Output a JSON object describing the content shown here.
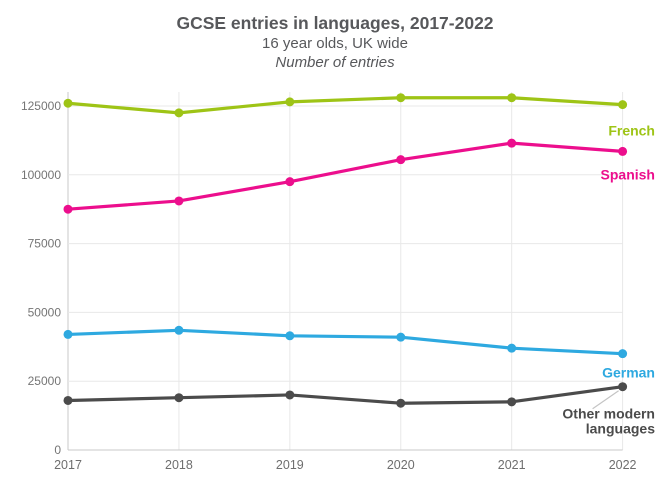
{
  "header": {
    "title": "GCSE entries in languages, 2017-2022",
    "subtitle": "16 year olds, UK wide",
    "note": "Number of entries"
  },
  "chart_data": {
    "type": "line",
    "title": "GCSE entries in languages, 2017-2022",
    "subtitle": "16 year olds, UK wide",
    "ylabel": "Number of entries",
    "xlabel": "",
    "categories": [
      "2017",
      "2018",
      "2019",
      "2020",
      "2021",
      "2022"
    ],
    "series": [
      {
        "name": "French",
        "color": "#9ec416",
        "values": [
          126000,
          122500,
          126500,
          128000,
          128000,
          125500
        ],
        "label_lines": [
          "French"
        ],
        "label_dy": 27,
        "leader": false
      },
      {
        "name": "Spanish",
        "color": "#ec0e8d",
        "values": [
          87500,
          90500,
          97500,
          105500,
          111500,
          108500
        ],
        "label_lines": [
          "Spanish"
        ],
        "label_dy": 24,
        "leader": false
      },
      {
        "name": "German",
        "color": "#2ea9e0",
        "values": [
          42000,
          43500,
          41500,
          41000,
          37000,
          35000
        ],
        "label_lines": [
          "German"
        ],
        "label_dy": 20,
        "leader": false
      },
      {
        "name": "Other modern languages",
        "color": "#4b4b4b",
        "values": [
          18000,
          19000,
          20000,
          17000,
          17500,
          23000
        ],
        "label_lines": [
          "Other modern",
          "languages"
        ],
        "label_dy": 28,
        "leader": true
      }
    ],
    "yticks": [
      0,
      25000,
      50000,
      75000,
      100000,
      125000
    ],
    "ylim": [
      0,
      137500
    ],
    "grid": true,
    "legend_position": "end-of-line-labels",
    "colors": {
      "title_text": "#57585b",
      "tick_text": "#757575",
      "gridline": "#e8e8e8",
      "axis_line": "#c9c9c9",
      "leader_line": "#c4c4c4",
      "background": "#ffffff"
    }
  }
}
